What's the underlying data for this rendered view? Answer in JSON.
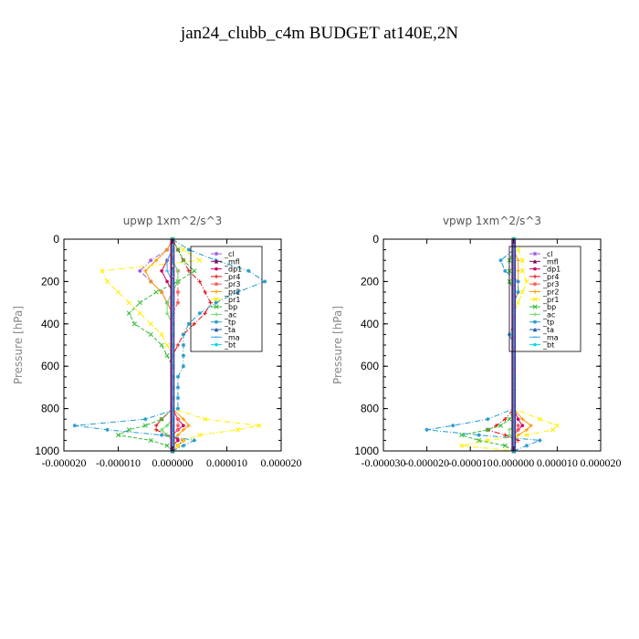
{
  "title": "jan24_clubb_c4m  BUDGET at140E,2N",
  "legend_entries": [
    {
      "label": "_cl",
      "color": "#9955dd",
      "marker": "star"
    },
    {
      "label": "_mfl",
      "color": "#880055",
      "marker": "tri"
    },
    {
      "label": "_dp1",
      "color": "#cc0066",
      "marker": "circle"
    },
    {
      "label": "_pr4",
      "color": "#dd1111",
      "marker": "plus"
    },
    {
      "label": "_pr3",
      "color": "#ff5555",
      "marker": "star"
    },
    {
      "label": "_pr2",
      "color": "#ff9900",
      "marker": "plus"
    },
    {
      "label": "_pr1",
      "color": "#ffee00",
      "marker": "x"
    },
    {
      "label": "_bp",
      "color": "#33bb33",
      "marker": "x"
    },
    {
      "label": "_ac",
      "color": "#66dd66",
      "marker": "plus"
    },
    {
      "label": "_tp",
      "color": "#2299cc",
      "marker": "star"
    },
    {
      "label": "_ta",
      "color": "#2255aa",
      "marker": "tri"
    },
    {
      "label": "_ma",
      "color": "#33aaee",
      "marker": "dash"
    },
    {
      "label": "_bt",
      "color": "#00dddd",
      "marker": "circle"
    }
  ],
  "chart_data": [
    {
      "type": "line",
      "title": "upwp   1xm^2/s^3",
      "ylabel": "Pressure [hPa]",
      "ylim": [
        0,
        1000
      ],
      "yticks": [
        "0",
        "200",
        "400",
        "600",
        "800",
        "1000"
      ],
      "xlim": [
        -2e-05,
        2e-05
      ],
      "xticks": [
        "-0.000020",
        "-0.000010",
        "0.000000",
        "0.000010",
        "0.000020"
      ],
      "grid": false,
      "legend_position": "top-right",
      "pressure": [
        0,
        50,
        100,
        150,
        200,
        250,
        300,
        350,
        400,
        450,
        500,
        550,
        600,
        650,
        700,
        750,
        800,
        850,
        880,
        900,
        925,
        950,
        975,
        1000
      ],
      "series": [
        {
          "name": "_cl",
          "values": [
            0,
            -1e-06,
            -4e-06,
            -6e-06,
            -4e-06,
            -2e-06,
            -1e-06,
            0,
            0,
            0,
            0,
            0,
            0,
            0,
            0,
            0,
            0,
            0,
            0,
            0,
            0,
            0,
            0,
            0
          ]
        },
        {
          "name": "_mfl",
          "values": [
            0,
            0,
            0,
            0,
            0,
            0,
            0,
            0,
            0,
            0,
            0,
            0,
            0,
            0,
            0,
            0,
            0,
            0,
            0,
            0,
            0,
            0,
            0,
            0
          ]
        },
        {
          "name": "_dp1",
          "values": [
            0,
            0,
            -1e-06,
            -2e-06,
            -1e-06,
            0,
            0,
            0,
            0,
            0,
            0,
            0,
            0,
            0,
            0,
            0,
            0,
            1e-06,
            2e-06,
            1e-06,
            0,
            1e-06,
            0,
            0
          ]
        },
        {
          "name": "_pr4",
          "values": [
            0,
            1e-06,
            2e-06,
            3e-06,
            5e-06,
            6e-06,
            7e-06,
            6e-06,
            4e-06,
            2e-06,
            1e-06,
            0,
            0,
            0,
            0,
            0,
            0,
            -2e-06,
            -3e-06,
            -3e-06,
            -1e-06,
            2e-06,
            1e-06,
            0
          ]
        },
        {
          "name": "_pr3",
          "values": [
            0,
            0,
            0,
            1e-06,
            1e-06,
            1e-06,
            1e-06,
            0,
            0,
            0,
            0,
            0,
            0,
            0,
            0,
            0,
            0,
            1e-06,
            1e-06,
            1e-06,
            0,
            0,
            0,
            0
          ]
        },
        {
          "name": "_pr2",
          "values": [
            0,
            -1e-06,
            -3e-06,
            -5e-06,
            -4e-06,
            -2e-06,
            -1e-06,
            0,
            0,
            0,
            0,
            0,
            0,
            0,
            0,
            0,
            0,
            2e-06,
            3e-06,
            2e-06,
            1e-06,
            0,
            1e-06,
            0
          ]
        },
        {
          "name": "_pr1",
          "values": [
            0,
            2e-06,
            5e-06,
            -1.3e-05,
            -1.2e-05,
            -1e-05,
            -8e-06,
            -6e-06,
            -4e-06,
            -2e-06,
            -1e-06,
            0,
            0,
            0,
            0,
            0,
            0,
            6e-06,
            1.6e-05,
            1.2e-05,
            5e-06,
            2e-06,
            1e-06,
            0
          ]
        },
        {
          "name": "_bp",
          "values": [
            0,
            1e-06,
            2e-06,
            4e-06,
            1e-06,
            -3e-06,
            -6e-06,
            -8e-06,
            -7e-06,
            -4e-06,
            -2e-06,
            -1e-06,
            0,
            0,
            0,
            0,
            0,
            -2e-06,
            -5e-06,
            -8e-06,
            -1e-05,
            -4e-06,
            -1e-06,
            0
          ]
        },
        {
          "name": "_ac",
          "values": [
            0,
            0,
            0,
            1e-06,
            1e-06,
            0,
            -1e-06,
            -1e-06,
            0,
            0,
            0,
            0,
            0,
            0,
            0,
            0,
            0,
            0,
            -1e-06,
            -2e-06,
            -1e-06,
            0,
            0,
            0
          ]
        },
        {
          "name": "_tp",
          "values": [
            0,
            3e-06,
            8e-06,
            1.4e-05,
            1.7e-05,
            1.2e-05,
            8e-06,
            5e-06,
            3e-06,
            2e-06,
            2e-06,
            2e-06,
            2e-06,
            1e-06,
            1e-06,
            1e-06,
            1e-06,
            -5e-06,
            -1.8e-05,
            -1.2e-05,
            -2e-06,
            4e-06,
            2e-06,
            0
          ]
        },
        {
          "name": "_ta",
          "values": [
            0,
            0,
            0,
            0,
            0,
            0,
            0,
            0,
            0,
            0,
            0,
            0,
            0,
            0,
            0,
            0,
            0,
            0,
            0,
            0,
            0,
            0,
            0,
            0
          ]
        },
        {
          "name": "_ma",
          "values": [
            0,
            0,
            -1e-06,
            -1e-06,
            0,
            0,
            0,
            0,
            0,
            0,
            0,
            0,
            0,
            0,
            0,
            0,
            0,
            0,
            0,
            0,
            0,
            0,
            0,
            0
          ]
        },
        {
          "name": "_bt",
          "values": [
            0,
            0,
            0,
            0,
            0,
            0,
            0,
            0,
            0,
            0,
            0,
            0,
            0,
            0,
            0,
            0,
            0,
            0,
            0,
            0,
            0,
            0,
            0,
            0
          ]
        }
      ]
    },
    {
      "type": "line",
      "title": "vpwp   1xm^2/s^3",
      "ylabel": "Pressure [hPa]",
      "ylim": [
        0,
        1000
      ],
      "yticks": [
        "0",
        "200",
        "400",
        "600",
        "800",
        "1000"
      ],
      "xlim": [
        -3e-05,
        2e-05
      ],
      "xticks": [
        "-0.000030",
        "-0.000020",
        "-0.000010",
        "0.000000",
        "0.000010",
        "0.000020"
      ],
      "grid": false,
      "legend_position": "top-right",
      "pressure": [
        0,
        50,
        100,
        150,
        200,
        250,
        300,
        350,
        400,
        450,
        500,
        550,
        600,
        650,
        700,
        750,
        800,
        850,
        880,
        900,
        925,
        950,
        975,
        1000
      ],
      "series": [
        {
          "name": "_cl",
          "values": [
            0,
            0,
            0,
            0,
            0,
            0,
            0,
            0,
            0,
            0,
            0,
            0,
            0,
            0,
            0,
            0,
            0,
            0,
            0,
            0,
            0,
            0,
            0,
            0
          ]
        },
        {
          "name": "_mfl",
          "values": [
            0,
            0,
            0,
            0,
            0,
            0,
            0,
            0,
            0,
            0,
            0,
            0,
            0,
            0,
            0,
            0,
            0,
            0,
            0,
            0,
            0,
            0,
            0,
            0
          ]
        },
        {
          "name": "_dp1",
          "values": [
            0,
            0,
            0,
            0,
            0,
            0,
            0,
            0,
            0,
            0,
            0,
            0,
            0,
            0,
            0,
            0,
            0,
            1e-06,
            2e-06,
            1e-06,
            0,
            0,
            0,
            0
          ]
        },
        {
          "name": "_pr4",
          "values": [
            0,
            0,
            0,
            0,
            0,
            0,
            0,
            0,
            0,
            0,
            0,
            0,
            0,
            0,
            0,
            0,
            0,
            -2e-06,
            -4e-06,
            -6e-06,
            -2e-06,
            1e-06,
            0,
            0
          ]
        },
        {
          "name": "_pr3",
          "values": [
            0,
            0,
            0,
            0,
            0,
            0,
            0,
            0,
            0,
            0,
            0,
            0,
            0,
            0,
            0,
            0,
            0,
            0,
            1e-06,
            1e-06,
            0,
            0,
            0,
            0
          ]
        },
        {
          "name": "_pr2",
          "values": [
            0,
            0,
            1e-06,
            1e-06,
            1e-06,
            1e-06,
            0,
            0,
            0,
            0,
            0,
            0,
            0,
            0,
            0,
            0,
            0,
            2e-06,
            4e-06,
            3e-06,
            1e-06,
            0,
            0,
            0
          ]
        },
        {
          "name": "_pr1",
          "values": [
            0,
            1e-06,
            2e-06,
            2e-06,
            3e-06,
            2e-06,
            1e-06,
            0,
            0,
            0,
            0,
            0,
            0,
            0,
            0,
            0,
            0,
            6e-06,
            1e-05,
            9e-06,
            3e-06,
            -6e-06,
            -1.2e-05,
            0
          ]
        },
        {
          "name": "_bp",
          "values": [
            0,
            0,
            -1e-06,
            -1e-06,
            -1e-06,
            0,
            0,
            0,
            0,
            0,
            0,
            0,
            0,
            0,
            0,
            0,
            0,
            -1e-06,
            -3e-06,
            -6e-06,
            -1.2e-05,
            -8e-06,
            -2e-06,
            0
          ]
        },
        {
          "name": "_ac",
          "values": [
            0,
            0,
            0,
            0,
            0,
            0,
            0,
            0,
            0,
            0,
            0,
            0,
            0,
            0,
            0,
            0,
            0,
            0,
            0,
            -1e-06,
            -1e-06,
            0,
            0,
            0
          ]
        },
        {
          "name": "_tp",
          "values": [
            0,
            0,
            -3e-06,
            -2e-06,
            1e-06,
            1e-06,
            0,
            0,
            0,
            -1e-06,
            0,
            0,
            0,
            0,
            0,
            0,
            0,
            -6e-06,
            -1.4e-05,
            -2e-05,
            -8e-06,
            6e-06,
            3e-06,
            0
          ]
        },
        {
          "name": "_ta",
          "values": [
            0,
            0,
            0,
            0,
            0,
            0,
            0,
            0,
            0,
            0,
            0,
            0,
            0,
            0,
            0,
            0,
            0,
            0,
            0,
            0,
            0,
            0,
            0,
            0
          ]
        },
        {
          "name": "_ma",
          "values": [
            0,
            0,
            0,
            0,
            0,
            0,
            0,
            0,
            0,
            0,
            0,
            0,
            0,
            0,
            0,
            0,
            0,
            0,
            0,
            0,
            0,
            0,
            0,
            0
          ]
        },
        {
          "name": "_bt",
          "values": [
            0,
            0,
            0,
            0,
            0,
            0,
            0,
            0,
            0,
            0,
            0,
            0,
            0,
            0,
            0,
            0,
            0,
            0,
            0,
            0,
            0,
            0,
            0,
            0
          ]
        }
      ]
    }
  ]
}
